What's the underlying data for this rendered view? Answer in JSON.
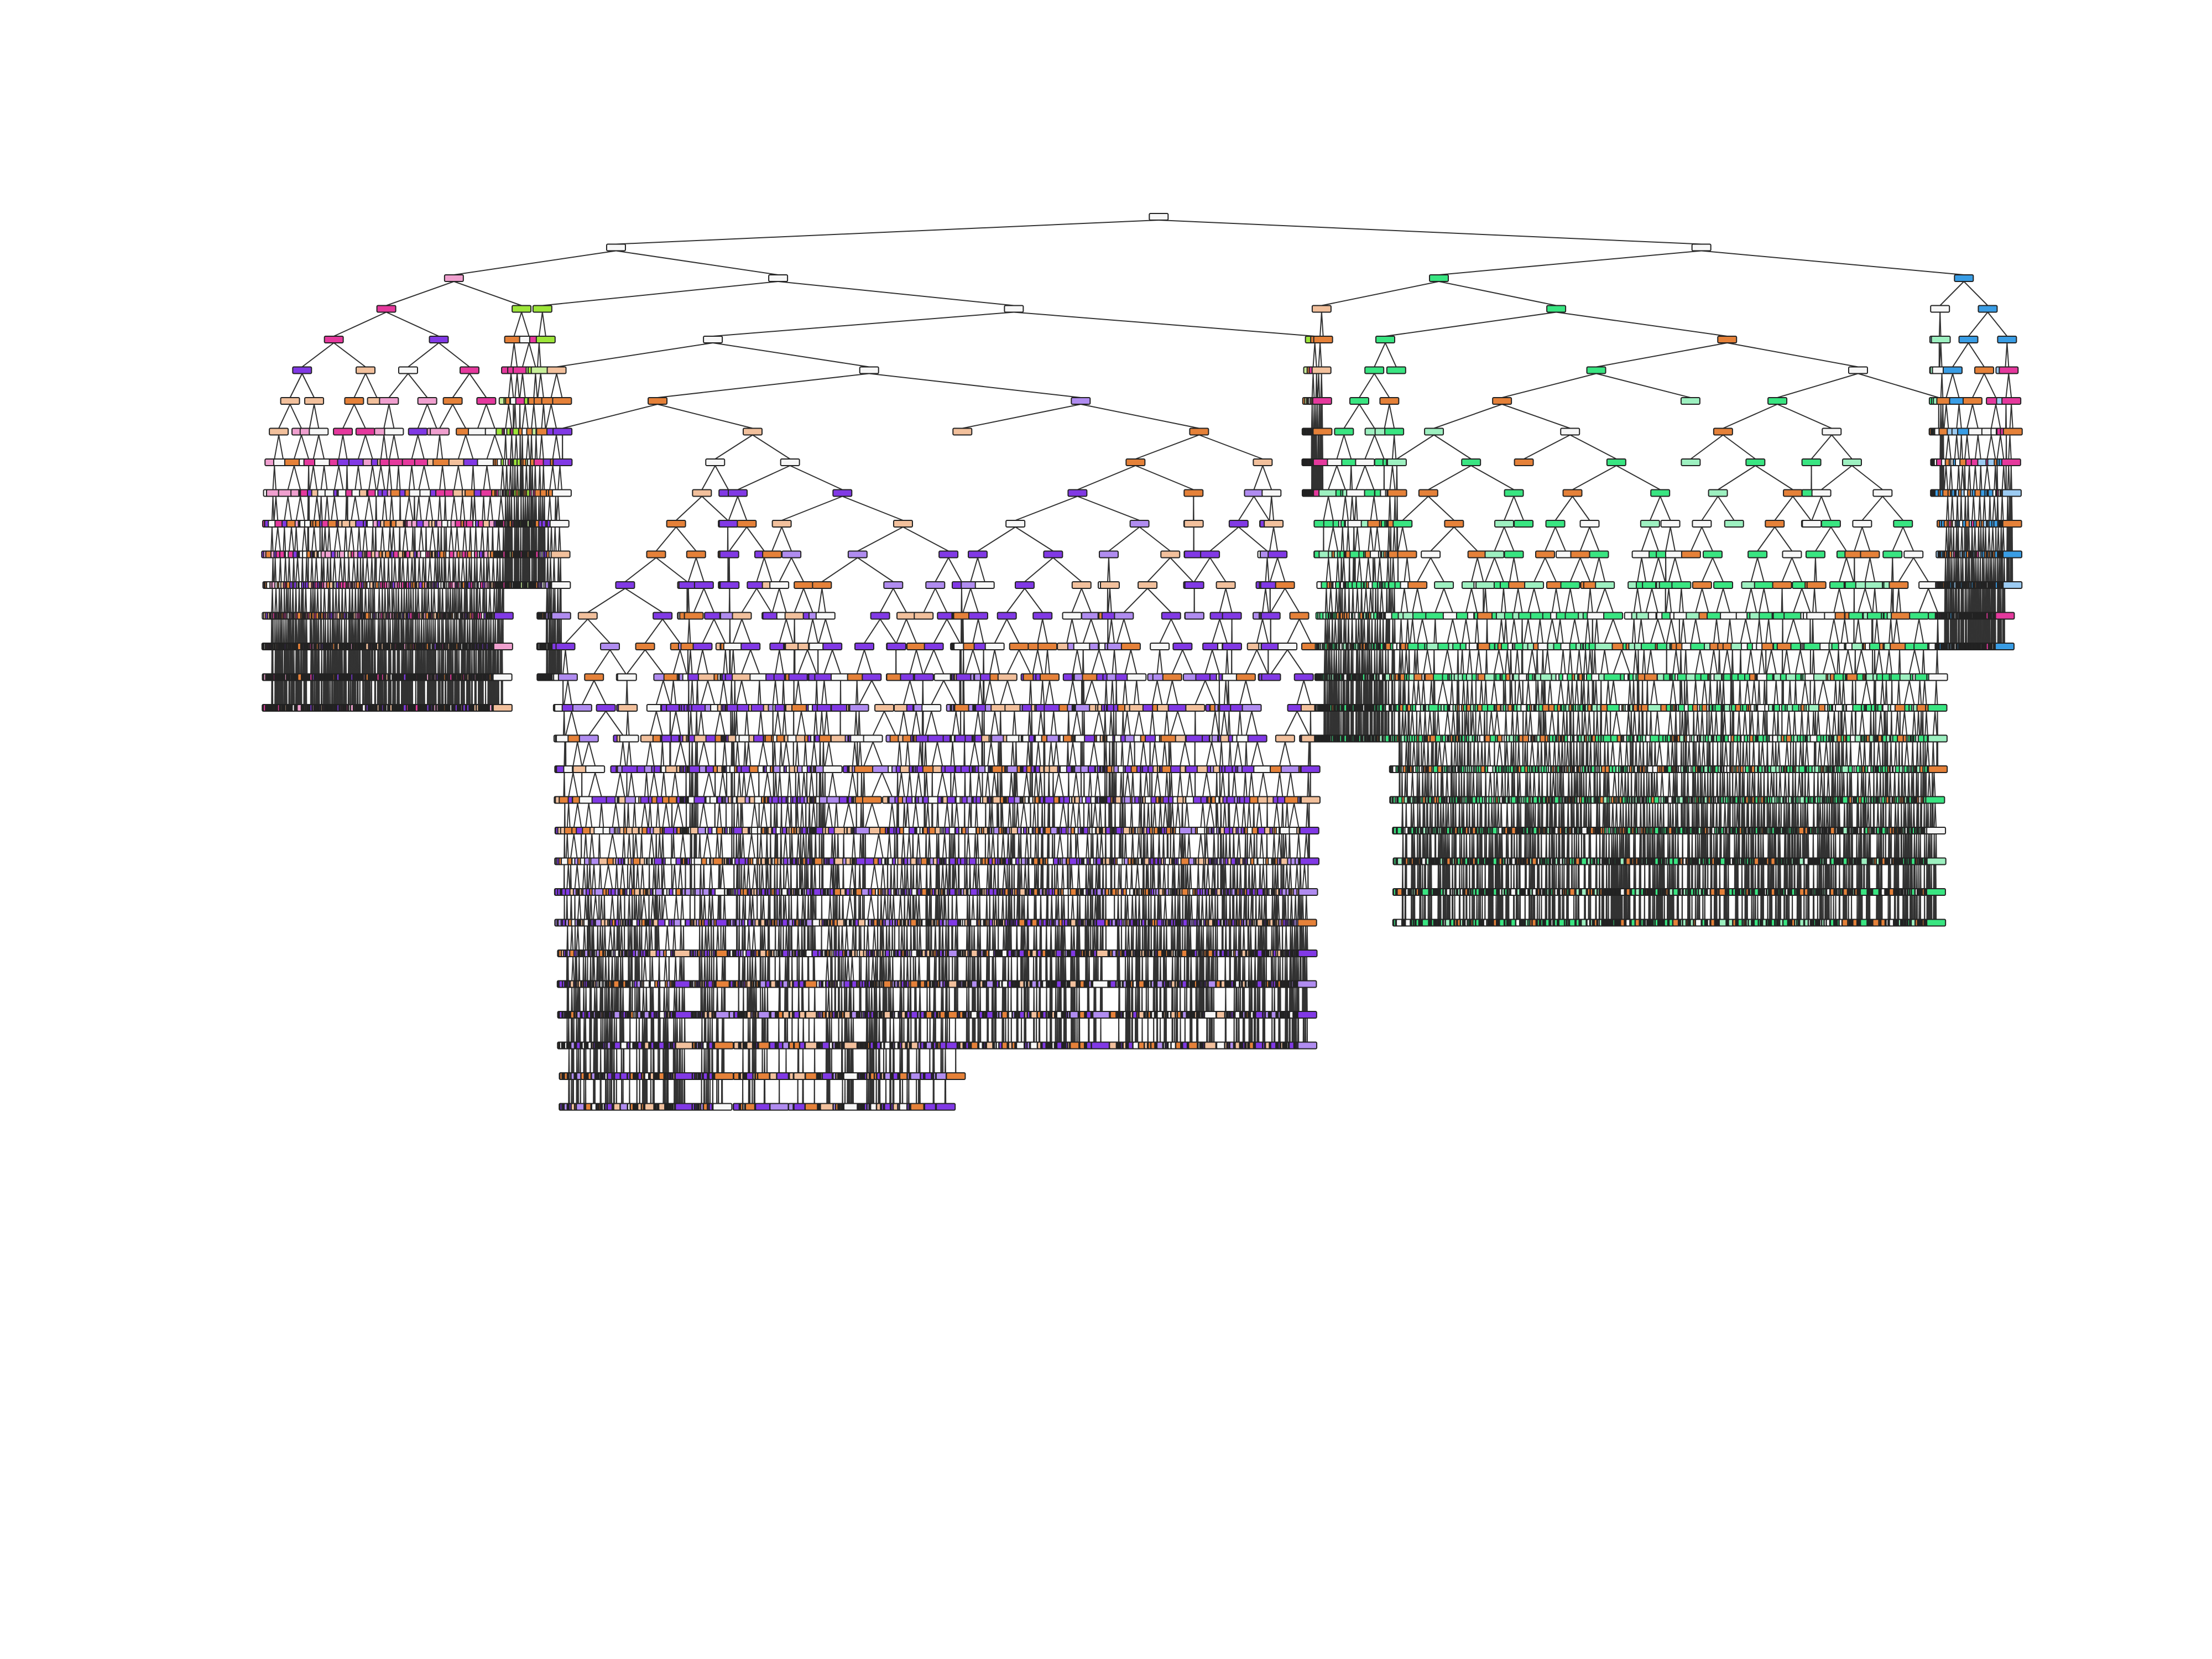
{
  "figure": {
    "type": "decision-tree",
    "note_text": "",
    "class_colors": {
      "white": "#f7f7f7",
      "orange": "#e58139",
      "lightorange": "#f2c09c",
      "purple": "#8139e5",
      "lightpurple": "#b08cf0",
      "green": "#39e581",
      "lightgreen": "#9df0c0",
      "olive": "#9de539",
      "lightolive": "#c8ef9a",
      "pink": "#e5399d",
      "lightpink": "#f0a0cf",
      "blue": "#399de5",
      "lightblue": "#9ccbf2"
    },
    "left_subtree_dominant_classes": [
      "purple",
      "orange",
      "pink",
      "olive"
    ],
    "right_subtree_dominant_classes": [
      "green",
      "blue"
    ],
    "root_class": "white"
  }
}
